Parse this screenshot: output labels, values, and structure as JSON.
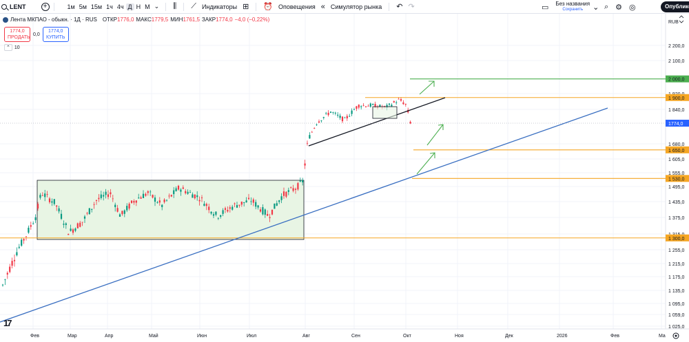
{
  "toolbar": {
    "symbol": "LENT",
    "intervals": [
      "1м",
      "5м",
      "15м",
      "1ч",
      "4ч",
      "Д",
      "Н",
      "М"
    ],
    "active_interval": "Д",
    "indicators_label": "Индикаторы",
    "alerts_label": "Оповещения",
    "replay_label": "Симулятор рынка",
    "layout_title": "Без названия",
    "layout_status": "Сохранить",
    "publish_label": "Опубликовать"
  },
  "legend": {
    "name": "Лента МКПАО - обыкн. · 1Д · RUS",
    "open_label": "ОТКР",
    "open": "1776,0",
    "high_label": "МАКС",
    "high": "1779,5",
    "low_label": "МИН",
    "low": "1761,5",
    "close_label": "ЗАКР",
    "close": "1774,0",
    "change": "−4,0 (−0,22%)",
    "sell_price": "1774,0",
    "sell_label": "ПРОДАТЬ",
    "spread": "0,0",
    "buy_price": "1774,0",
    "buy_label": "КУПИТЬ",
    "volume_period": "10"
  },
  "price_axis": {
    "currency": "RUB",
    "ticks": [
      "2 200,0",
      "2 100,0",
      "1 920,0",
      "1 840,0",
      "1 680,0",
      "1 605,0",
      "1 555,0",
      "1 495,0",
      "1 435,0",
      "1 375,0",
      "1 315,0",
      "1 255,0",
      "1 215,0",
      "1 175,0",
      "1 135,0",
      "1 095,0",
      "1 059,0",
      "1 025,0"
    ],
    "tick_values": [
      2200,
      2100,
      1920,
      1840,
      1680,
      1605,
      1555,
      1495,
      1435,
      1375,
      1315,
      1255,
      1215,
      1175,
      1135,
      1095,
      1059,
      1025
    ],
    "current_price": "1774,0",
    "current_value": 1774
  },
  "time_axis": {
    "labels": [
      "Фев",
      "Мар",
      "Апр",
      "Май",
      "Июн",
      "Июл",
      "Авг",
      "Сен",
      "Окт",
      "Ноя",
      "Дек",
      "2026",
      "Фев",
      "Ма"
    ]
  },
  "levels": [
    {
      "value": 2000,
      "label": "2 000,0",
      "color": "#4caf50"
    },
    {
      "value": 1900,
      "label": "1 900,0",
      "color": "#f5a623"
    },
    {
      "value": 1650,
      "label": "1 650,0",
      "color": "#f5a623"
    },
    {
      "value": 1530,
      "label": "1 530,0",
      "color": "#f5a623"
    },
    {
      "value": 1300,
      "label": "1 300,0",
      "color": "#f5a623"
    }
  ],
  "colors": {
    "up": "#089981",
    "down": "#f23645",
    "trendline": "#3a6fc1",
    "range_box_fill": "#e8f5e4",
    "current_price_bg": "#2962ff"
  }
}
